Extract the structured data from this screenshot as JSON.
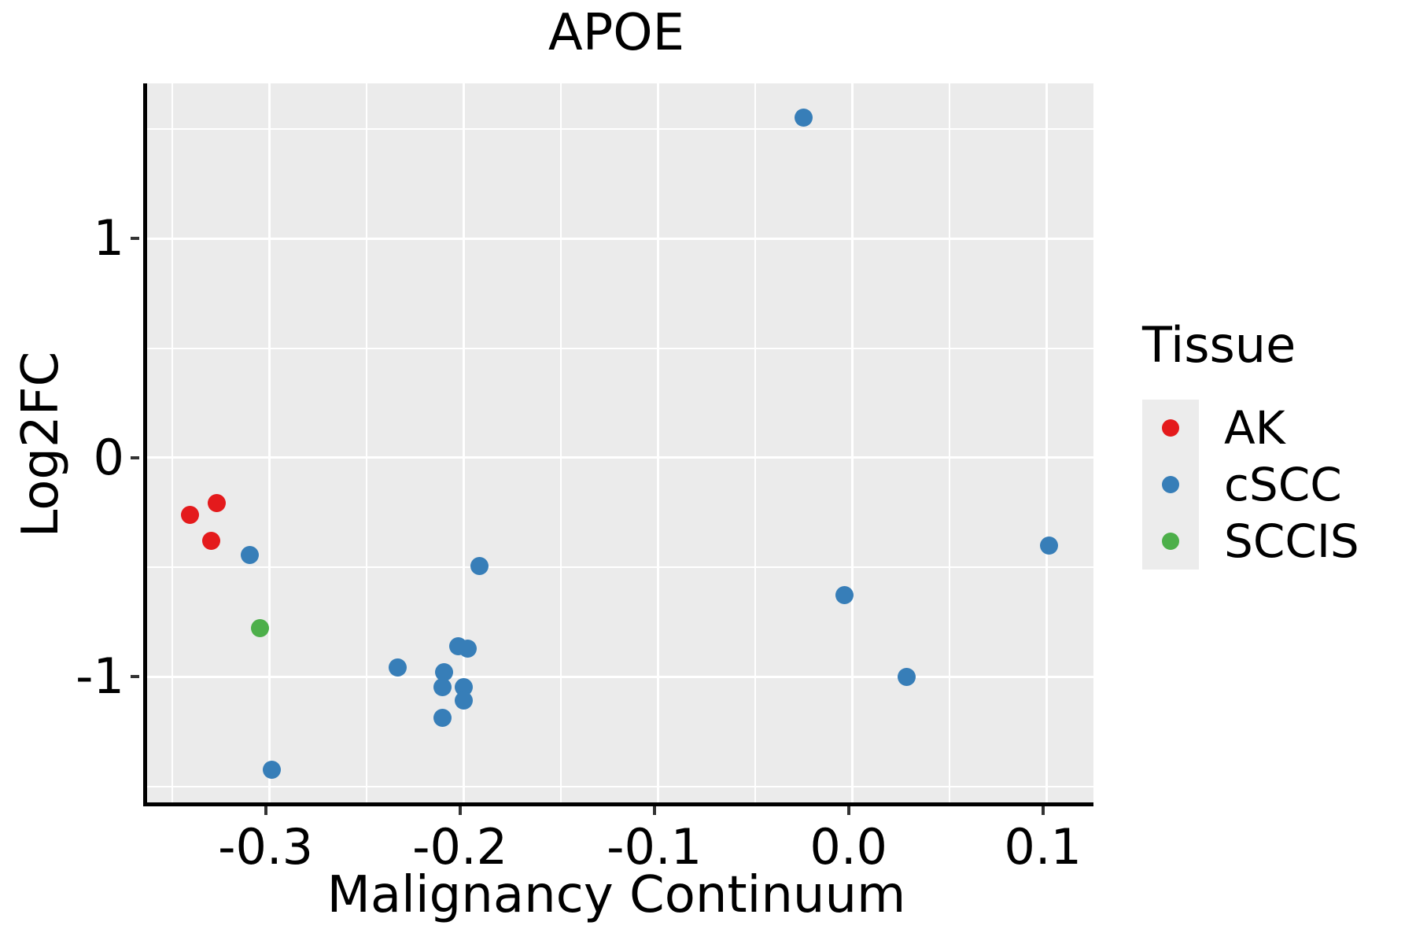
{
  "title": "APOE",
  "axes": {
    "x_label": "Malignancy Continuum",
    "y_label": "Log2FC"
  },
  "legend": {
    "title": "Tissue",
    "items": [
      {
        "label": "AK",
        "color": "#E41A1C"
      },
      {
        "label": "cSCC",
        "color": "#377EB8"
      },
      {
        "label": "SCCIS",
        "color": "#4DAF4A"
      }
    ]
  },
  "colors": {
    "panel_background": "#EBEBEB",
    "grid": "#FFFFFF",
    "axis_line": "#000000",
    "tick_mark": "#333333",
    "legend_key_background": "#ECECEC",
    "red": "#E41A1C",
    "blue": "#377EB8",
    "green": "#4DAF4A"
  },
  "chart_data": {
    "type": "scatter",
    "title": "APOE",
    "xlabel": "Malignancy Continuum",
    "ylabel": "Log2FC",
    "xlim": [
      -0.363,
      0.124
    ],
    "ylim": [
      -1.573,
      1.709
    ],
    "x_ticks": [
      -0.3,
      -0.2,
      -0.1,
      0.0,
      0.1
    ],
    "x_tick_labels": [
      "-0.3",
      "-0.2",
      "-0.1",
      "0.0",
      "0.1"
    ],
    "y_ticks": [
      -1,
      0,
      1
    ],
    "y_tick_labels": [
      "-1",
      "0",
      "1"
    ],
    "x_minor_ticks": [
      -0.35,
      -0.25,
      -0.15,
      -0.05,
      0.05
    ],
    "y_minor_ticks": [
      -1.5,
      -0.5,
      0.5,
      1.5
    ],
    "grid": true,
    "legend_position": "right",
    "series": [
      {
        "name": "AK",
        "color": "#E41A1C",
        "points": [
          [
            -0.341,
            -0.262
          ],
          [
            -0.327,
            -0.208
          ],
          [
            -0.33,
            -0.38
          ]
        ]
      },
      {
        "name": "cSCC",
        "color": "#377EB8",
        "points": [
          [
            -0.025,
            1.552
          ],
          [
            -0.31,
            -0.444
          ],
          [
            -0.192,
            -0.495
          ],
          [
            -0.299,
            -1.425
          ],
          [
            -0.234,
            -0.957
          ],
          [
            -0.203,
            -0.861
          ],
          [
            -0.198,
            -0.871
          ],
          [
            -0.21,
            -0.979
          ],
          [
            -0.211,
            -1.047
          ],
          [
            -0.2,
            -1.047
          ],
          [
            -0.2,
            -1.108
          ],
          [
            -0.211,
            -1.186
          ],
          [
            -0.004,
            -0.627
          ],
          [
            0.028,
            -1.0
          ],
          [
            0.101,
            -0.401
          ]
        ]
      },
      {
        "name": "SCCIS",
        "color": "#4DAF4A",
        "points": [
          [
            -0.305,
            -0.776
          ]
        ]
      }
    ]
  }
}
